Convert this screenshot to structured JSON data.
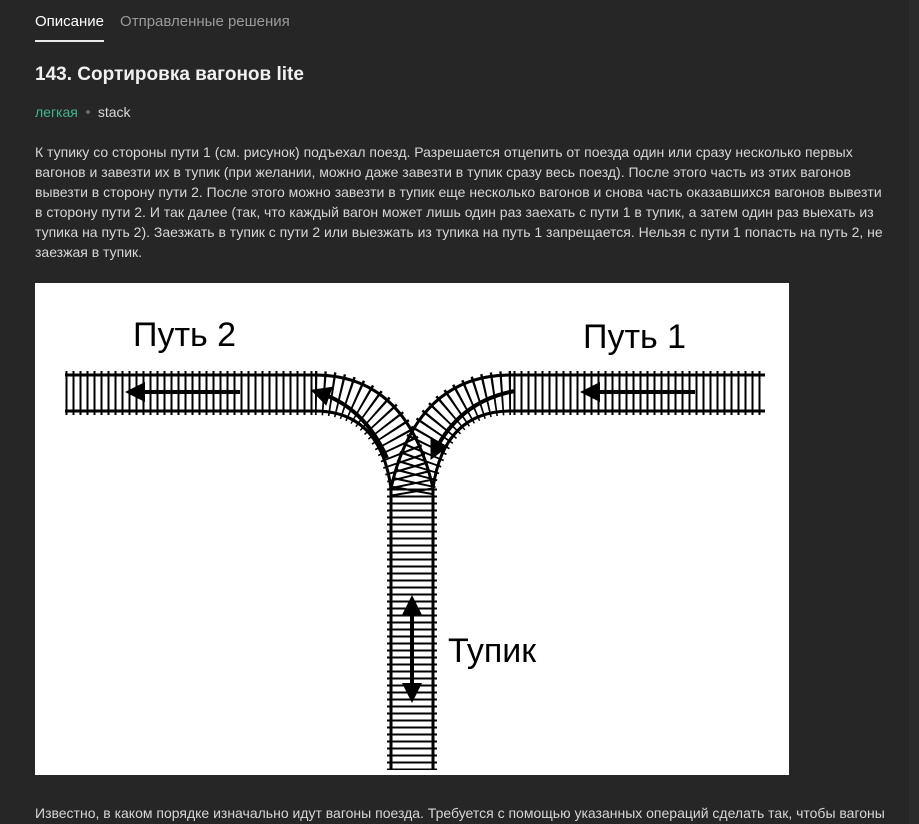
{
  "tabs": [
    {
      "label": "Описание",
      "active": true
    },
    {
      "label": "Отправленные решения",
      "active": false
    }
  ],
  "problem": {
    "title": "143. Сортировка вагонов lite",
    "difficulty": "легкая",
    "topic": "stack",
    "statement": "К тупику со стороны пути 1 (см. рисунок) подъехал поезд. Разрешается отцепить от поезда один или сразу несколько первых вагонов и завезти их в тупик (при желании, можно даже завезти в тупик сразу весь поезд). После этого часть из этих вагонов вывезти в сторону пути 2. После этого можно завезти в тупик еще несколько вагонов и снова часть оказавшихся вагонов вывезти в сторону пути 2. И так далее (так, что каждый вагон может лишь один раз заехать с пути 1 в тупик, а затем один раз выехать из тупика на путь 2). Заезжать в тупик с пути 2 или выезжать из тупика на путь 1 запрещается. Нельзя с пути 1 попасть на путь 2, не заезжая в тупик.",
    "statement_continued": "Известно, в каком порядке изначально идут вагоны поезда. Требуется с помощью указанных операций сделать так, чтобы вагоны"
  },
  "figure": {
    "label_track2": "Путь 2",
    "label_track1": "Путь 1",
    "label_deadend": "Тупик"
  },
  "colors": {
    "background": "#262626",
    "difficulty_easy": "#3fb68b",
    "text": "#d6d6d6"
  }
}
